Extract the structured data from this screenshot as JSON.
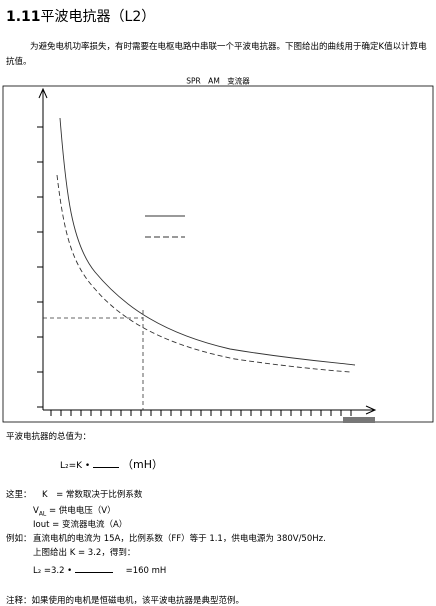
{
  "section": {
    "number": "1.11",
    "title": "平波电抗器（L2）"
  },
  "intro": "为避免电机功率损失，有时需要在电枢电路中串联一个平波电抗器。下图给出的曲线用于确定K值以计算电抗值。",
  "figure": {
    "title": "SPR　AM　变流器"
  },
  "total_label": "平波电抗器的总值为：",
  "formula": {
    "left": "L₂=K •",
    "unit": "（mH）"
  },
  "definitions": {
    "lead": "这里：",
    "items": [
      "K　=  常数取决于比例系数",
      "V<sub>AL</sub> = 供电电压（V）",
      "Iout = 变流器电流（A）"
    ]
  },
  "example": {
    "lead": "例如：",
    "lines": [
      "直流电机的电流为  15A，比例系数（FF）等于  1.1，供电电源为   380V/50Hz.",
      "上图给出  K = 3.2，得到："
    ],
    "formula_left": "L₂ =3.2 •",
    "formula_right": "=160 mH"
  },
  "note": "注释：如果使用的电机是恒磁电机，该平波电抗器是典型范例。"
}
